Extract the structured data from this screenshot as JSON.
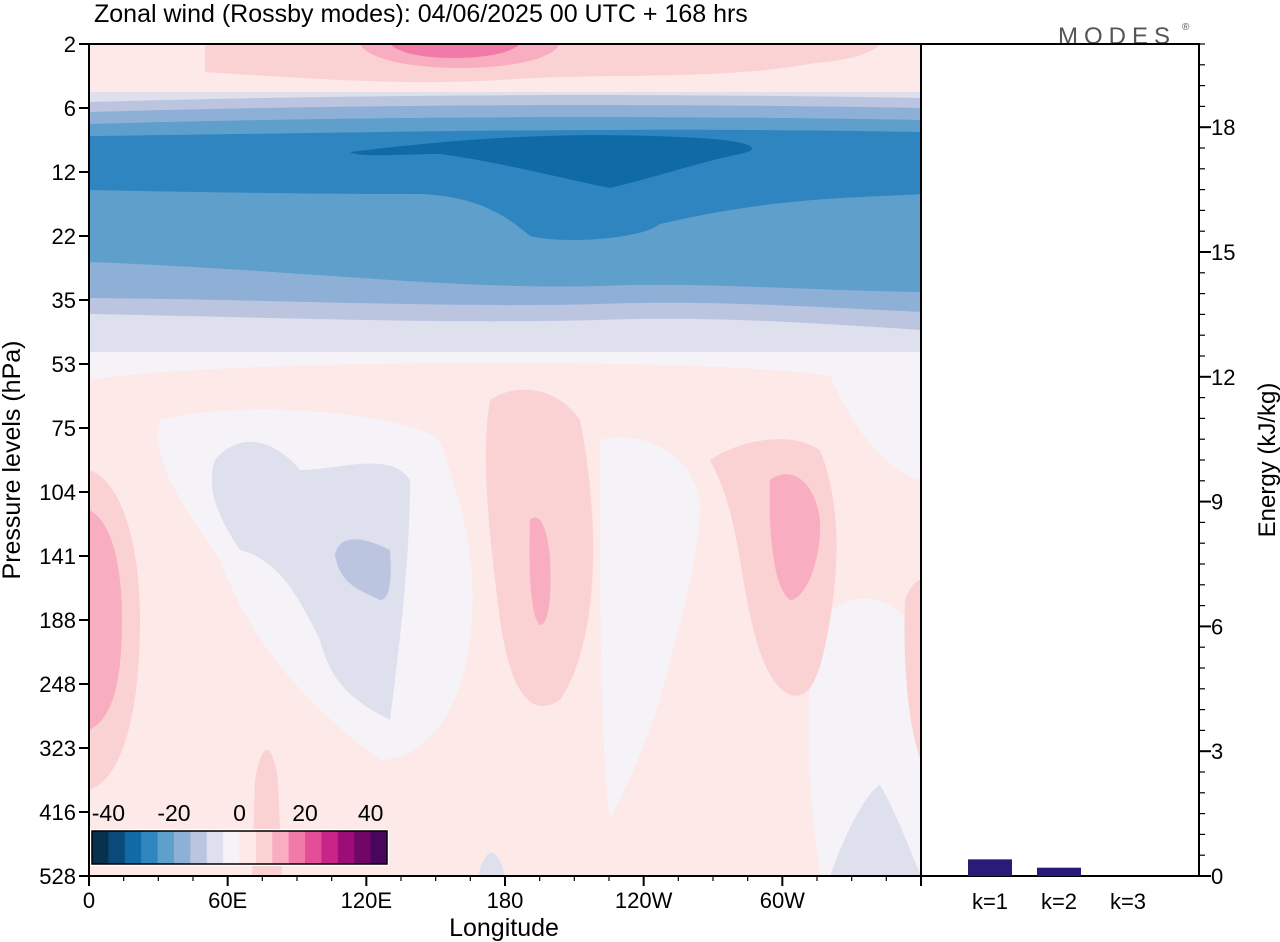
{
  "header": {
    "title": "Zonal wind (Rossby modes):  04/06/2025  00 UTC  + 168 hrs",
    "brand": "MODES",
    "brand_mark": "®"
  },
  "chart_data": [
    {
      "type": "heatmap",
      "title": "Zonal wind (Rossby modes):  04/06/2025  00 UTC  + 168 hrs",
      "xlabel": "Longitude",
      "ylabel": "Pressure levels (hPa)",
      "x_ticks": [
        "0",
        "60E",
        "120E",
        "180",
        "120W",
        "60W"
      ],
      "x_tick_degrees": [
        0,
        60,
        120,
        180,
        240,
        300
      ],
      "xlim_degrees": [
        0,
        360
      ],
      "y_ticks": [
        "2",
        "6",
        "12",
        "22",
        "35",
        "53",
        "75",
        "104",
        "141",
        "188",
        "248",
        "323",
        "416",
        "528"
      ],
      "y_scale": "pressure levels, top 2 hPa to bottom 528 hPa",
      "colorbar": {
        "tick_labels": [
          "-40",
          "-20",
          "0",
          "20",
          "40"
        ],
        "tick_values": [
          -40,
          -20,
          0,
          20,
          40
        ],
        "levels": [
          -45,
          -40,
          -35,
          -30,
          -25,
          -20,
          -15,
          -10,
          -5,
          5,
          10,
          15,
          20,
          25,
          30,
          35,
          40,
          45
        ],
        "colors": [
          "#08304f",
          "#0a4a78",
          "#0f6aa6",
          "#2f85bf",
          "#5e9fcb",
          "#8fb0d6",
          "#bcc5e0",
          "#dfe0ee",
          "#f5f3f8",
          "#fce9e8",
          "#fbd2d4",
          "#f8aec0",
          "#f27aa8",
          "#e44d98",
          "#c9248a",
          "#9c0d78",
          "#6f0668",
          "#4a065a"
        ],
        "placement": "lower-left inside plot"
      },
      "bands_ms": [
        {
          "level_hpa": 2,
          "value": 5
        },
        {
          "level_hpa": 6,
          "value": -10
        },
        {
          "level_hpa": 12,
          "value": -35
        },
        {
          "level_hpa": 22,
          "value": -25
        },
        {
          "level_hpa": 35,
          "value": -15
        },
        {
          "level_hpa": 53,
          "value": 0
        },
        {
          "level_hpa": 75,
          "value": 2
        },
        {
          "level_hpa": 141,
          "value": 5
        },
        {
          "level_hpa": 528,
          "value": 0
        }
      ]
    },
    {
      "type": "bar",
      "categories": [
        "k=1",
        "k=2",
        "k=3"
      ],
      "values": [
        0.02,
        0.01,
        0.0
      ],
      "ylabel": "Energy (kJ/kg)",
      "y_ticks": [
        "0",
        "3",
        "6",
        "9",
        "12",
        "15",
        "18"
      ],
      "ylim": [
        0,
        20
      ]
    }
  ],
  "colors": {
    "frame": "#000000",
    "bar_fill": "#2a1a7a",
    "brand_text": "#555555"
  }
}
